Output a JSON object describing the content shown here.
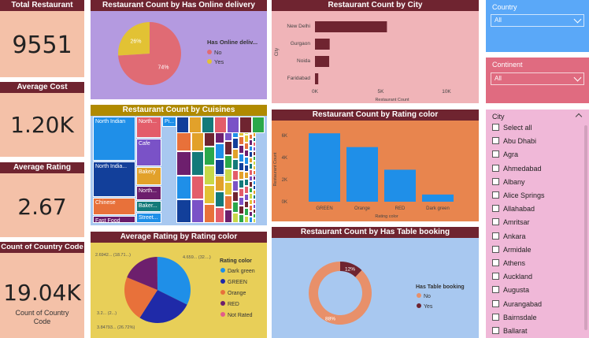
{
  "kpis": {
    "total_restaurant": {
      "title": "Total Restaurant",
      "value": "9551"
    },
    "average_cost": {
      "title": "Average Cost",
      "value": "1.20K"
    },
    "average_rating": {
      "title": "Average Rating",
      "value": "2.67"
    },
    "country_code": {
      "title": "Count of Country Code",
      "value": "19.04K",
      "sub": "Count of Country Code"
    }
  },
  "online_delivery": {
    "title": "Restaurant Count by Has Online delivery",
    "legend_title": "Has Online deliv...",
    "slices": [
      {
        "label": "No",
        "pct_label": "74%",
        "value": 74,
        "color": "#e06b74"
      },
      {
        "label": "Yes",
        "pct_label": "26%",
        "value": 26,
        "color": "#e2c234"
      }
    ]
  },
  "by_city": {
    "title": "Restaurant Count by City",
    "ylabel": "City",
    "xlabel": "Restaurant Count",
    "ticks": [
      "0K",
      "5K",
      "10K"
    ],
    "tick_values": [
      0,
      5000,
      10000
    ],
    "bars": [
      {
        "label": "New Delhi",
        "value": 5473
      },
      {
        "label": "Gurgaon",
        "value": 1118
      },
      {
        "label": "Noida",
        "value": 1080
      },
      {
        "label": "Faridabad",
        "value": 251
      }
    ]
  },
  "cuisines": {
    "title": "Restaurant Count by Cuisines",
    "cells": [
      {
        "label": "North Indian",
        "color": "#1f8fe8"
      },
      {
        "label": "North...",
        "color": "#e35d6a"
      },
      {
        "label": "Pi...",
        "color": "#1f8fe8"
      },
      {
        "label": "Cafe",
        "color": "#7a52c7"
      },
      {
        "label": "North India...",
        "color": "#123f9a"
      },
      {
        "label": "Bakery",
        "color": "#e2a12a"
      },
      {
        "label": "Chinese",
        "color": "#e8713a"
      },
      {
        "label": "North...",
        "color": "#6d1f6d"
      },
      {
        "label": "Baker...",
        "color": "#137a7a"
      },
      {
        "label": "Fast Food",
        "color": "#6a1b6a"
      },
      {
        "label": "Street...",
        "color": "#1f8fe8"
      }
    ]
  },
  "avg_rating_color": {
    "title": "Average Rating by Rating color",
    "legend_title": "Rating color",
    "slices": [
      {
        "label": "Dark green",
        "value": 4.659,
        "data_label": "4.659... (32....)",
        "color": "#1f8fe8"
      },
      {
        "label": "GREEN",
        "value": 3.847,
        "data_label": "3.84793... (26.72%)",
        "color": "#1f2aa8"
      },
      {
        "label": "Orange",
        "value": 3.2,
        "data_label": "3.2... (2...)",
        "color": "#e8713a"
      },
      {
        "label": "RED",
        "value": 2.694,
        "data_label": "2.6942... (18.71...)",
        "color": "#6d1f6d"
      },
      {
        "label": "Not Rated",
        "value": 0.01,
        "data_label": "",
        "color": "#e35d8a"
      }
    ]
  },
  "rating_color_count": {
    "title": "Restaurant Count by Rating color",
    "ylabel": "Restaurant Count",
    "xlabel": "Rating color",
    "ticks": [
      "0K",
      "2K",
      "4K",
      "6K"
    ],
    "tick_values": [
      0,
      2000,
      4000,
      6000
    ],
    "bars": [
      {
        "label": "GREEN",
        "value": 6200
      },
      {
        "label": "Orange",
        "value": 4950
      },
      {
        "label": "RED",
        "value": 2900
      },
      {
        "label": "Dark green",
        "value": 650
      }
    ],
    "bar_color": "#1f8fe8"
  },
  "table_booking": {
    "title": "Restaurant Count by Has Table booking",
    "legend_title": "Has Table booking",
    "slices": [
      {
        "label": "No",
        "pct_label": "88%",
        "value": 88,
        "color": "#e8906a"
      },
      {
        "label": "Yes",
        "pct_label": "12%",
        "value": 12,
        "color": "#6f2430"
      }
    ]
  },
  "slicers": {
    "country": {
      "label": "Country",
      "value": "All"
    },
    "continent": {
      "label": "Continent",
      "value": "All"
    },
    "city": {
      "label": "City",
      "items": [
        "Select all",
        "Abu Dhabi",
        "Agra",
        "Ahmedabad",
        "Albany",
        "Alice Springs",
        "Allahabad",
        "Amritsar",
        "Ankara",
        "Armidale",
        "Athens",
        "Auckland",
        "Augusta",
        "Aurangabad",
        "Bairnsdale",
        "Ballarat"
      ]
    }
  },
  "colors": {
    "kpi_bg": "#f4c1a8",
    "title_bar": "#6f2430",
    "online_bg": "#b49ae0",
    "city_bg": "#f0b4b8",
    "cuisine_bg": "#a8c8f0",
    "rating_pie_bg": "#e8cf58",
    "rating_bar_bg": "#e8854e",
    "booking_bg": "#a8c8f0",
    "country_slicer_bg": "#5aa8f8",
    "continent_slicer_bg": "#e06b80",
    "city_slicer_bg": "#f0b8d8",
    "bar_dark": "#6f2430"
  }
}
